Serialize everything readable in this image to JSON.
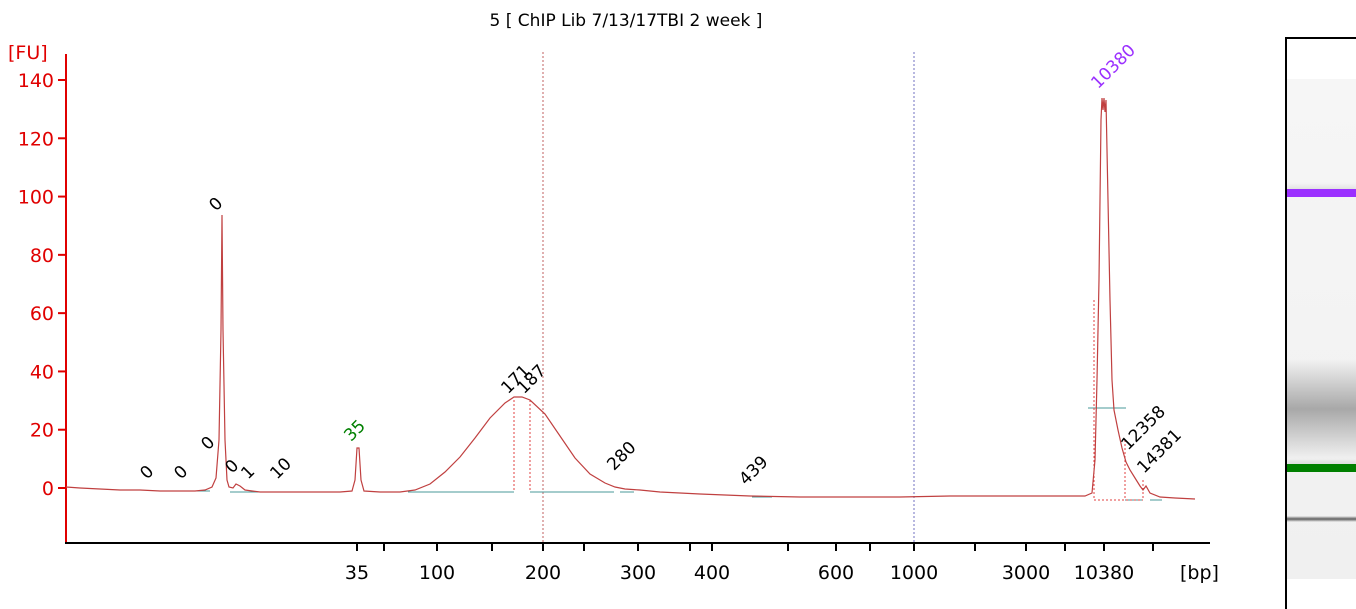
{
  "chart_data": {
    "type": "line",
    "title": "5  [ ChIP Lib 7/13/17TBI 2 week ]",
    "ylabel": "[FU]",
    "xlabel": "[bp]",
    "y_ticks": [
      "0",
      "20",
      "40",
      "60",
      "80",
      "100",
      "120",
      "140"
    ],
    "x_ticks": [
      "35",
      "100",
      "200",
      "300",
      "400",
      "600",
      "1000",
      "3000",
      "10380"
    ],
    "ylim": [
      -18,
      148
    ],
    "colors": {
      "axis": "#e00000",
      "trace": "#c04040",
      "lower_marker": "#008000",
      "upper_marker": "#9b30ff",
      "baseline": "#4a9a9a",
      "grid": "#7070c0"
    },
    "peaks": [
      {
        "label": "0",
        "x": 8.1,
        "y": 0,
        "color": "#000000"
      },
      {
        "label": "0",
        "x": 11.3,
        "y": 0,
        "color": "#000000"
      },
      {
        "label": "0",
        "x": 14.6,
        "y": 92,
        "color": "#000000"
      },
      {
        "label": "0",
        "x": 14.0,
        "y": 10,
        "color": "#000000"
      },
      {
        "label": "0",
        "x": 16.0,
        "y": 2,
        "color": "#000000"
      },
      {
        "label": "1",
        "x": 17.4,
        "y": 0,
        "color": "#000000"
      },
      {
        "label": "10",
        "x": 20.4,
        "y": 0,
        "color": "#000000"
      },
      {
        "label": "35",
        "x": 35,
        "y": 13,
        "color": "#008000"
      },
      {
        "label": "171",
        "x": 171,
        "y": 30,
        "color": "#000000"
      },
      {
        "label": "187",
        "x": 187,
        "y": 30,
        "color": "#000000"
      },
      {
        "label": "280",
        "x": 280,
        "y": 3,
        "color": "#000000"
      },
      {
        "label": "439",
        "x": 439,
        "y": -2,
        "color": "#000000"
      },
      {
        "label": "10380",
        "x": 10380,
        "y": 134,
        "color": "#9b30ff"
      },
      {
        "label": "12358",
        "x": 12358,
        "y": 10,
        "color": "#000000"
      },
      {
        "label": "14381",
        "x": 14381,
        "y": 2,
        "color": "#000000"
      }
    ],
    "gel_bands": [
      {
        "name": "upper-marker",
        "position": 0.23,
        "color": "#9b30ff"
      },
      {
        "name": "sample-smear",
        "position": 0.66,
        "color": "#b4b4b4"
      },
      {
        "name": "lower-marker",
        "position": 0.78,
        "color": "#008000"
      },
      {
        "name": "primer-band",
        "position": 0.88,
        "color": "#606060"
      }
    ]
  }
}
